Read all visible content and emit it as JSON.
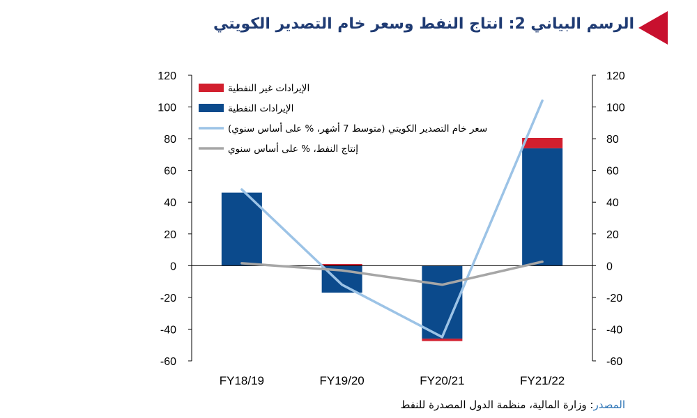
{
  "title": "الرسم البياني 2: انتاج النفط وسعر خام التصدير الكويتي",
  "source": {
    "label": "المصدر",
    "text": ": وزارة المالية، منظمة الدول المصدرة للنفط"
  },
  "colors": {
    "non_oil_revenue": "#d21f2e",
    "oil_revenue": "#0b4a8c",
    "kec_price": "#9cc3e6",
    "oil_production": "#a6a6a6",
    "title": "#1f3b73",
    "marker": "#c8102e"
  },
  "chart_data": {
    "type": "bar",
    "stacked": true,
    "categories": [
      "FY18/19",
      "FY19/20",
      "FY20/21",
      "FY21/22"
    ],
    "series": [
      {
        "name": "الإيرادات النفطية",
        "kind": "bar",
        "axis": "left",
        "values": [
          46,
          -17,
          -46,
          74
        ]
      },
      {
        "name": "الإيرادات غير النفطية",
        "kind": "bar",
        "axis": "left",
        "values": [
          0,
          1,
          -1.5,
          6.5
        ]
      },
      {
        "name": "سعر خام التصدير الكويتي (متوسط 7 أشهر، % على أساس سنوي)",
        "kind": "line",
        "axis": "right",
        "values": [
          48,
          -12,
          -45,
          104
        ]
      },
      {
        "name": "إنتاج النفط، % على أساس سنوي",
        "kind": "line",
        "axis": "right",
        "values": [
          1.5,
          -3,
          -12,
          2.5
        ]
      }
    ],
    "legend_order": [
      1,
      0,
      2,
      3
    ],
    "legend_position": "top-left",
    "ylim": [
      -60,
      120
    ],
    "y2lim": [
      -60,
      120
    ],
    "yticks": [
      120,
      100,
      80,
      60,
      40,
      20,
      0,
      -20,
      -40,
      -60
    ],
    "y2ticks": [
      120,
      100,
      80,
      60,
      40,
      20,
      0,
      -20,
      -40,
      -60
    ],
    "grid": false
  }
}
